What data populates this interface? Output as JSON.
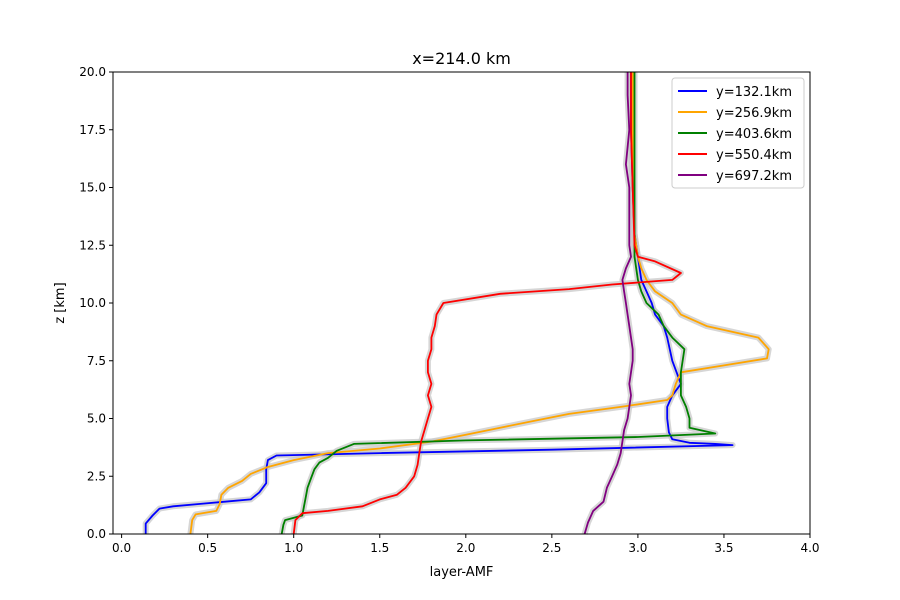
{
  "chart_data": {
    "type": "line",
    "title": "x=214.0 km",
    "xlabel": "layer-AMF",
    "ylabel": "z [km]",
    "xlim": [
      -0.05,
      4.0
    ],
    "ylim": [
      0,
      20
    ],
    "xticks": [
      "0.0",
      "0.5",
      "1.0",
      "1.5",
      "2.0",
      "2.5",
      "3.0",
      "3.5",
      "4.0"
    ],
    "yticks": [
      "0.0",
      "2.5",
      "5.0",
      "7.5",
      "10.0",
      "12.5",
      "15.0",
      "17.5",
      "20.0"
    ],
    "grid": false,
    "legend_position": "top-right",
    "series": [
      {
        "name": "y=132.1km",
        "color": "#0000ff",
        "points": [
          [
            0.14,
            0.0
          ],
          [
            0.14,
            0.45
          ],
          [
            0.18,
            0.8
          ],
          [
            0.22,
            1.1
          ],
          [
            0.3,
            1.2
          ],
          [
            0.45,
            1.3
          ],
          [
            0.6,
            1.4
          ],
          [
            0.75,
            1.5
          ],
          [
            0.8,
            1.8
          ],
          [
            0.84,
            2.2
          ],
          [
            0.84,
            2.8
          ],
          [
            0.85,
            3.2
          ],
          [
            0.9,
            3.4
          ],
          [
            1.5,
            3.5
          ],
          [
            2.5,
            3.65
          ],
          [
            3.55,
            3.85
          ],
          [
            3.45,
            3.9
          ],
          [
            3.3,
            3.95
          ],
          [
            3.2,
            4.1
          ],
          [
            3.18,
            4.4
          ],
          [
            3.17,
            5.0
          ],
          [
            3.17,
            5.5
          ],
          [
            3.2,
            6.0
          ],
          [
            3.25,
            6.5
          ],
          [
            3.2,
            7.5
          ],
          [
            3.17,
            8.5
          ],
          [
            3.15,
            9.0
          ],
          [
            3.1,
            9.5
          ],
          [
            3.08,
            10.0
          ],
          [
            3.05,
            10.5
          ],
          [
            3.02,
            11.0
          ],
          [
            3.0,
            12.0
          ],
          [
            2.98,
            13.0
          ],
          [
            2.97,
            15.0
          ],
          [
            2.96,
            17.5
          ],
          [
            2.96,
            20.0
          ]
        ]
      },
      {
        "name": "y=256.9km",
        "color": "#ffa500",
        "points": [
          [
            0.4,
            0.0
          ],
          [
            0.41,
            0.6
          ],
          [
            0.43,
            0.85
          ],
          [
            0.55,
            1.0
          ],
          [
            0.57,
            1.3
          ],
          [
            0.58,
            1.7
          ],
          [
            0.62,
            2.0
          ],
          [
            0.7,
            2.3
          ],
          [
            0.75,
            2.6
          ],
          [
            0.85,
            2.9
          ],
          [
            1.0,
            3.2
          ],
          [
            1.2,
            3.5
          ],
          [
            1.5,
            3.7
          ],
          [
            1.8,
            4.0
          ],
          [
            2.0,
            4.3
          ],
          [
            2.2,
            4.6
          ],
          [
            2.4,
            4.9
          ],
          [
            2.6,
            5.2
          ],
          [
            2.9,
            5.5
          ],
          [
            3.17,
            5.8
          ],
          [
            3.2,
            6.0
          ],
          [
            3.22,
            6.5
          ],
          [
            3.25,
            7.0
          ],
          [
            3.5,
            7.3
          ],
          [
            3.75,
            7.6
          ],
          [
            3.76,
            8.0
          ],
          [
            3.7,
            8.5
          ],
          [
            3.4,
            9.0
          ],
          [
            3.25,
            9.5
          ],
          [
            3.2,
            10.0
          ],
          [
            3.1,
            10.5
          ],
          [
            3.05,
            11.0
          ],
          [
            3.02,
            11.5
          ],
          [
            3.0,
            12.0
          ],
          [
            2.98,
            13.0
          ],
          [
            2.97,
            15.0
          ],
          [
            2.97,
            20.0
          ]
        ]
      },
      {
        "name": "y=403.6km",
        "color": "#008000",
        "points": [
          [
            0.93,
            0.0
          ],
          [
            0.94,
            0.4
          ],
          [
            0.95,
            0.6
          ],
          [
            1.05,
            0.8
          ],
          [
            1.06,
            1.2
          ],
          [
            1.07,
            1.6
          ],
          [
            1.08,
            2.0
          ],
          [
            1.1,
            2.4
          ],
          [
            1.12,
            2.8
          ],
          [
            1.15,
            3.1
          ],
          [
            1.2,
            3.3
          ],
          [
            1.25,
            3.6
          ],
          [
            1.35,
            3.9
          ],
          [
            2.0,
            4.05
          ],
          [
            3.0,
            4.2
          ],
          [
            3.45,
            4.35
          ],
          [
            3.3,
            4.6
          ],
          [
            3.3,
            5.0
          ],
          [
            3.28,
            5.5
          ],
          [
            3.25,
            6.0
          ],
          [
            3.25,
            7.0
          ],
          [
            3.27,
            8.0
          ],
          [
            3.2,
            8.5
          ],
          [
            3.15,
            9.0
          ],
          [
            3.12,
            9.5
          ],
          [
            3.05,
            10.0
          ],
          [
            3.02,
            10.5
          ],
          [
            3.0,
            11.0
          ],
          [
            2.98,
            12.0
          ],
          [
            2.98,
            15.0
          ],
          [
            2.98,
            20.0
          ]
        ]
      },
      {
        "name": "y=550.4km",
        "color": "#ff0000",
        "points": [
          [
            1.0,
            0.0
          ],
          [
            1.01,
            0.6
          ],
          [
            1.05,
            0.9
          ],
          [
            1.2,
            1.0
          ],
          [
            1.4,
            1.2
          ],
          [
            1.5,
            1.5
          ],
          [
            1.6,
            1.7
          ],
          [
            1.65,
            2.0
          ],
          [
            1.7,
            2.5
          ],
          [
            1.72,
            3.0
          ],
          [
            1.73,
            3.5
          ],
          [
            1.74,
            4.0
          ],
          [
            1.76,
            4.5
          ],
          [
            1.78,
            5.0
          ],
          [
            1.8,
            5.5
          ],
          [
            1.78,
            6.0
          ],
          [
            1.8,
            6.5
          ],
          [
            1.78,
            7.0
          ],
          [
            1.78,
            7.5
          ],
          [
            1.8,
            8.0
          ],
          [
            1.8,
            8.5
          ],
          [
            1.82,
            9.0
          ],
          [
            1.83,
            9.5
          ],
          [
            1.87,
            10.0
          ],
          [
            2.2,
            10.4
          ],
          [
            2.6,
            10.6
          ],
          [
            2.85,
            10.8
          ],
          [
            3.2,
            11.0
          ],
          [
            3.25,
            11.3
          ],
          [
            3.1,
            11.8
          ],
          [
            3.0,
            12.0
          ],
          [
            2.98,
            12.5
          ],
          [
            2.97,
            15.0
          ],
          [
            2.96,
            17.5
          ],
          [
            2.96,
            20.0
          ]
        ]
      },
      {
        "name": "y=697.2km",
        "color": "#800080",
        "points": [
          [
            2.69,
            0.0
          ],
          [
            2.71,
            0.5
          ],
          [
            2.74,
            1.0
          ],
          [
            2.8,
            1.4
          ],
          [
            2.82,
            2.0
          ],
          [
            2.85,
            2.5
          ],
          [
            2.88,
            3.0
          ],
          [
            2.9,
            3.5
          ],
          [
            2.91,
            4.0
          ],
          [
            2.92,
            4.5
          ],
          [
            2.94,
            5.0
          ],
          [
            2.95,
            5.5
          ],
          [
            2.96,
            6.0
          ],
          [
            2.95,
            6.5
          ],
          [
            2.97,
            7.5
          ],
          [
            2.97,
            8.0
          ],
          [
            2.96,
            8.5
          ],
          [
            2.95,
            9.0
          ],
          [
            2.94,
            9.5
          ],
          [
            2.93,
            10.0
          ],
          [
            2.92,
            10.5
          ],
          [
            2.91,
            11.0
          ],
          [
            2.93,
            11.5
          ],
          [
            2.96,
            12.0
          ],
          [
            2.95,
            12.5
          ],
          [
            2.95,
            15.0
          ],
          [
            2.93,
            16.0
          ],
          [
            2.95,
            17.5
          ],
          [
            2.94,
            19.0
          ],
          [
            2.94,
            20.0
          ]
        ]
      }
    ]
  }
}
